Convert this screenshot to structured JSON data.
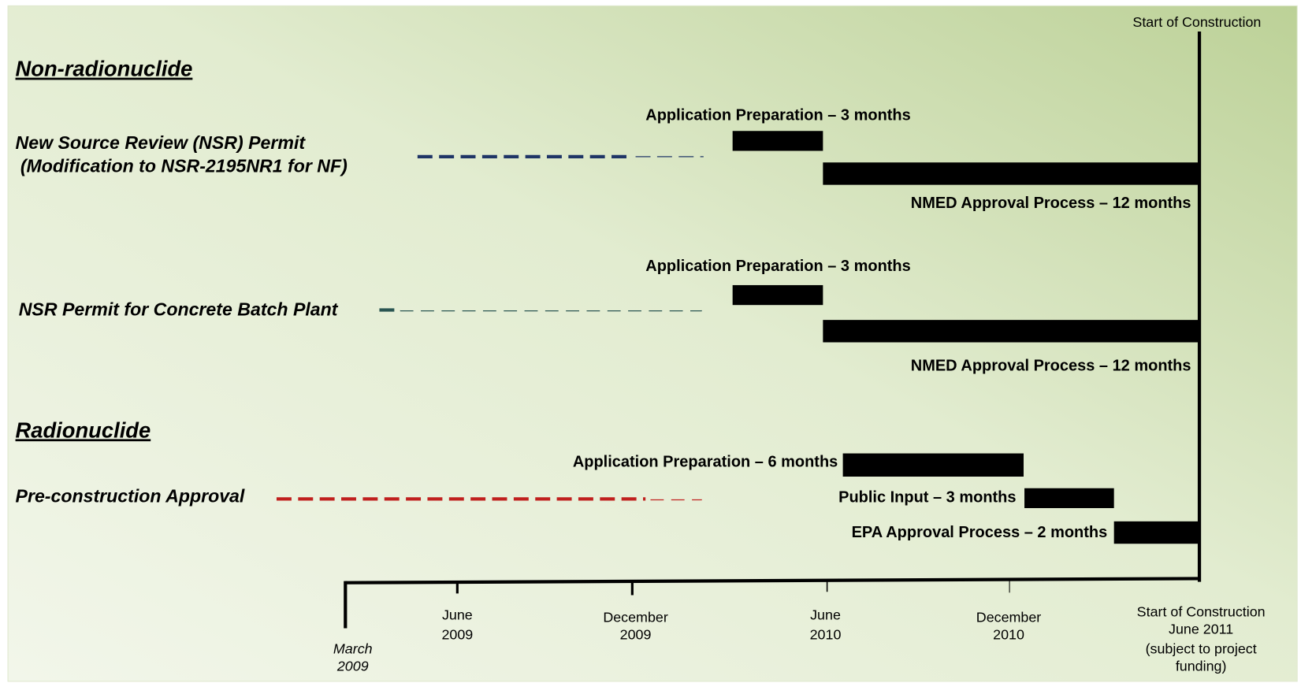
{
  "milestone_top": "Start of Construction",
  "sections": [
    {
      "title": "Non-radionuclide"
    },
    {
      "title": "Radionuclide"
    }
  ],
  "rows": [
    {
      "label_lines": [
        "New Source Review (NSR) Permit",
        "(Modification to NSR-2195NR1 for NF)"
      ],
      "tasks": [
        "Application Preparation – 3 months",
        "NMED Approval Process – 12 months"
      ]
    },
    {
      "label_lines": [
        "NSR Permit for Concrete Batch Plant"
      ],
      "tasks": [
        "Application Preparation – 3 months",
        "NMED Approval Process – 12 months"
      ]
    },
    {
      "label_lines": [
        "Pre-construction Approval"
      ],
      "tasks": [
        "Application Preparation – 6 months",
        "Public Input – 3 months",
        "EPA Approval Process – 2 months"
      ]
    }
  ],
  "axis": {
    "ticks": [
      {
        "lines": [
          "March",
          "2009"
        ]
      },
      {
        "lines": [
          "June",
          "2009"
        ]
      },
      {
        "lines": [
          "December",
          "2009"
        ]
      },
      {
        "lines": [
          "June",
          "2010"
        ]
      },
      {
        "lines": [
          "December",
          "2010"
        ]
      }
    ],
    "end_lines": [
      "Start of Construction",
      "June 2011",
      "(subject to project",
      "funding)"
    ]
  }
}
